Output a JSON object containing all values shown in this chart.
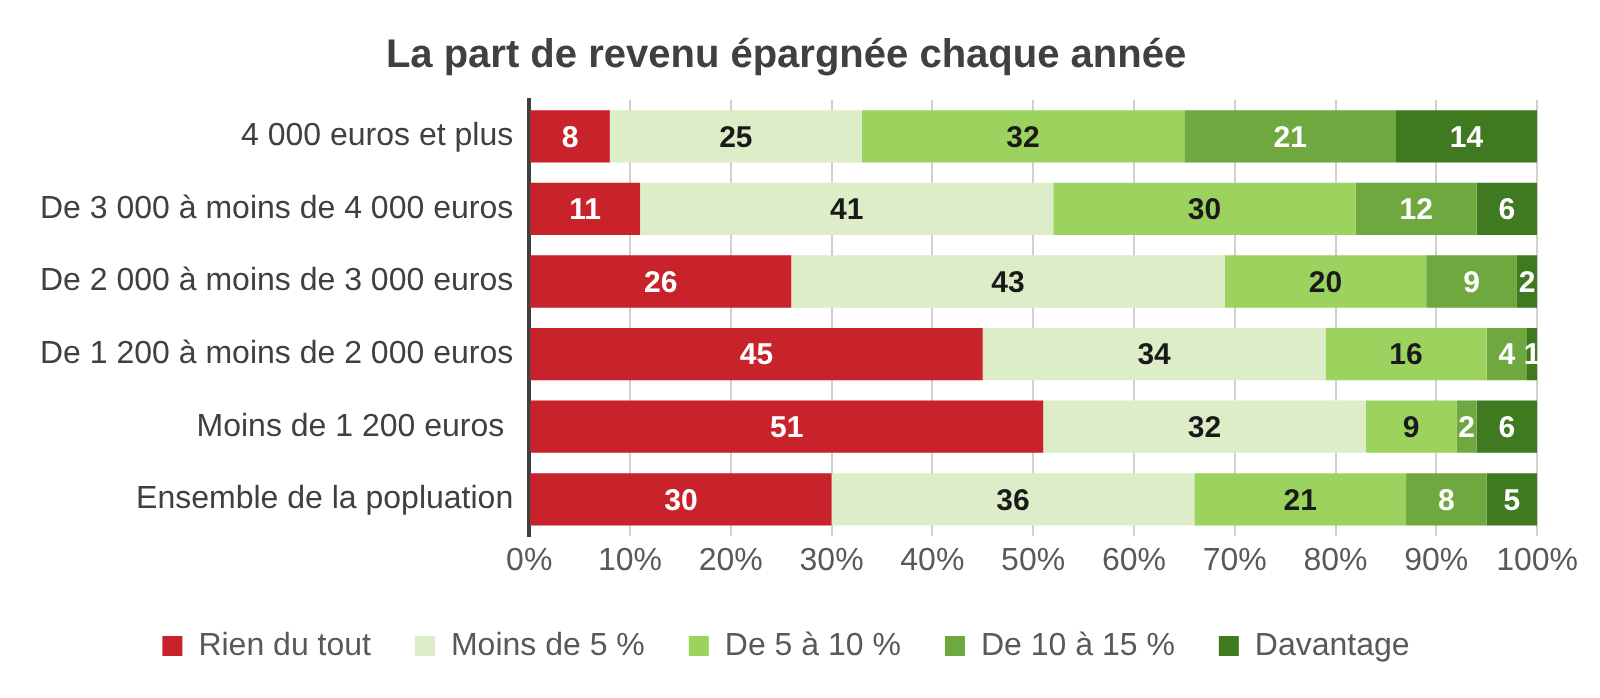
{
  "chart_data": {
    "type": "bar",
    "orientation": "horizontal",
    "stacked": true,
    "title": "La part de revenu épargnée chaque année",
    "categories": [
      "4 000 euros et plus",
      "De 3 000 à moins de 4 000 euros",
      "De 2 000 à moins de 3 000 euros",
      "De 1 200 à moins de 2 000 euros",
      "Moins de 1 200 euros ",
      "Ensemble de la popluation"
    ],
    "series": [
      {
        "name": "Rien du tout",
        "color": "#c8232b",
        "values": [
          8,
          11,
          26,
          45,
          51,
          30
        ]
      },
      {
        "name": "Moins de 5 %",
        "color": "#dcedc8",
        "values": [
          25,
          41,
          43,
          34,
          32,
          36
        ]
      },
      {
        "name": "De 5 à 10 %",
        "color": "#9cd35f",
        "values": [
          32,
          30,
          20,
          16,
          9,
          21
        ]
      },
      {
        "name": "De 10 à 15 %",
        "color": "#6ea83f",
        "values": [
          21,
          12,
          9,
          4,
          2,
          8
        ]
      },
      {
        "name": "Davantage",
        "color": "#3f7a20",
        "values": [
          14,
          6,
          2,
          1,
          6,
          5
        ]
      }
    ],
    "xlim": [
      0,
      100
    ],
    "xticks": [
      {
        "value": 0,
        "label": "0%"
      },
      {
        "value": 10,
        "label": "10%"
      },
      {
        "value": 20,
        "label": "20%"
      },
      {
        "value": 30,
        "label": "30%"
      },
      {
        "value": 40,
        "label": "40%"
      },
      {
        "value": 50,
        "label": "50%"
      },
      {
        "value": 60,
        "label": "60%"
      },
      {
        "value": 70,
        "label": "70%"
      },
      {
        "value": 80,
        "label": "80%"
      },
      {
        "value": 90,
        "label": "90%"
      },
      {
        "value": 100,
        "label": "100%"
      }
    ],
    "grid": "x",
    "legend": "bottom",
    "data_labels": true
  }
}
